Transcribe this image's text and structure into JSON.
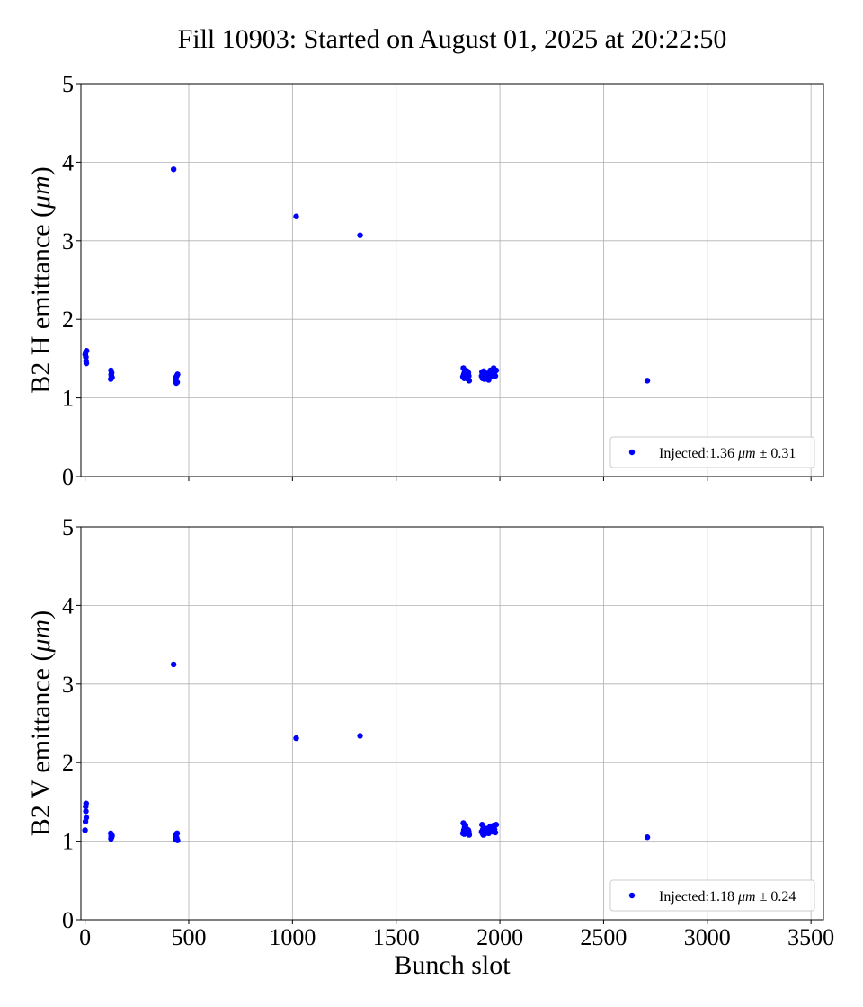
{
  "figure": {
    "title": "Fill 10903: Started on August 01, 2025 at 20:22:50"
  },
  "chart_data": [
    {
      "type": "scatter",
      "ylabel": "B2 H emittance (",
      "ylabel_unit": "μm",
      "ylabel_close": ")",
      "xlabel": "",
      "xlim": [
        -20,
        3560
      ],
      "ylim": [
        0,
        5
      ],
      "xticks": [
        0,
        500,
        1000,
        1500,
        2000,
        2500,
        3000,
        3500
      ],
      "xtick_labels_visible": false,
      "yticks": [
        0,
        1,
        2,
        3,
        4,
        5
      ],
      "grid": true,
      "legend_position": "lower-right",
      "color": "#0000ff",
      "series": [
        {
          "name": "Injected:1.36 μm ± 0.31",
          "legend_prefix": "Injected:1.36 ",
          "legend_unit": "μm",
          "legend_suffix": " ± 0.31",
          "points": [
            [
              1,
              1.55
            ],
            [
              3,
              1.58
            ],
            [
              4,
              1.52
            ],
            [
              5,
              1.47
            ],
            [
              6,
              1.44
            ],
            [
              7,
              1.6
            ],
            [
              124,
              1.24
            ],
            [
              125,
              1.35
            ],
            [
              126,
              1.3
            ],
            [
              127,
              1.28
            ],
            [
              128,
              1.32
            ],
            [
              130,
              1.26
            ],
            [
              427,
              3.91
            ],
            [
              436,
              1.22
            ],
            [
              438,
              1.26
            ],
            [
              440,
              1.19
            ],
            [
              442,
              1.28
            ],
            [
              444,
              1.2
            ],
            [
              446,
              1.3
            ],
            [
              1018,
              3.31
            ],
            [
              1326,
              3.07
            ],
            [
              1822,
              1.27
            ],
            [
              1824,
              1.38
            ],
            [
              1826,
              1.3
            ],
            [
              1828,
              1.25
            ],
            [
              1830,
              1.33
            ],
            [
              1832,
              1.28
            ],
            [
              1834,
              1.35
            ],
            [
              1836,
              1.26
            ],
            [
              1838,
              1.31
            ],
            [
              1840,
              1.27
            ],
            [
              1842,
              1.34
            ],
            [
              1844,
              1.29
            ],
            [
              1846,
              1.24
            ],
            [
              1848,
              1.32
            ],
            [
              1850,
              1.28
            ],
            [
              1852,
              1.22
            ],
            [
              1912,
              1.28
            ],
            [
              1914,
              1.33
            ],
            [
              1916,
              1.25
            ],
            [
              1918,
              1.3
            ],
            [
              1920,
              1.27
            ],
            [
              1922,
              1.34
            ],
            [
              1926,
              1.24
            ],
            [
              1930,
              1.29
            ],
            [
              1934,
              1.26
            ],
            [
              1938,
              1.31
            ],
            [
              1942,
              1.28
            ],
            [
              1946,
              1.23
            ],
            [
              1950,
              1.3
            ],
            [
              1954,
              1.35
            ],
            [
              1958,
              1.27
            ],
            [
              1962,
              1.32
            ],
            [
              1966,
              1.29
            ],
            [
              1970,
              1.38
            ],
            [
              1974,
              1.33
            ],
            [
              1978,
              1.28
            ],
            [
              1982,
              1.35
            ],
            [
              2711,
              1.22
            ]
          ]
        }
      ]
    },
    {
      "type": "scatter",
      "ylabel": "B2 V emittance (",
      "ylabel_unit": "μm",
      "ylabel_close": ")",
      "xlabel": "Bunch slot",
      "xlim": [
        -20,
        3560
      ],
      "ylim": [
        0,
        5
      ],
      "xticks": [
        0,
        500,
        1000,
        1500,
        2000,
        2500,
        3000,
        3500
      ],
      "xtick_labels_visible": true,
      "yticks": [
        0,
        1,
        2,
        3,
        4,
        5
      ],
      "grid": true,
      "legend_position": "lower-right",
      "color": "#0000ff",
      "series": [
        {
          "name": "Injected:1.18 μm ± 0.24",
          "legend_prefix": "Injected:1.18 ",
          "legend_unit": "μm",
          "legend_suffix": " ± 0.24",
          "points": [
            [
              0,
              1.14
            ],
            [
              2,
              1.25
            ],
            [
              3,
              1.44
            ],
            [
              4,
              1.38
            ],
            [
              5,
              1.48
            ],
            [
              6,
              1.3
            ],
            [
              124,
              1.1
            ],
            [
              125,
              1.03
            ],
            [
              126,
              1.06
            ],
            [
              127,
              1.08
            ],
            [
              128,
              1.05
            ],
            [
              130,
              1.07
            ],
            [
              427,
              3.25
            ],
            [
              436,
              1.06
            ],
            [
              438,
              1.02
            ],
            [
              440,
              1.09
            ],
            [
              442,
              1.04
            ],
            [
              444,
              1.1
            ],
            [
              446,
              1.01
            ],
            [
              1018,
              2.31
            ],
            [
              1326,
              2.34
            ],
            [
              1822,
              1.1
            ],
            [
              1824,
              1.23
            ],
            [
              1826,
              1.14
            ],
            [
              1828,
              1.09
            ],
            [
              1830,
              1.18
            ],
            [
              1832,
              1.12
            ],
            [
              1834,
              1.2
            ],
            [
              1836,
              1.11
            ],
            [
              1838,
              1.16
            ],
            [
              1840,
              1.1
            ],
            [
              1842,
              1.15
            ],
            [
              1844,
              1.13
            ],
            [
              1846,
              1.09
            ],
            [
              1848,
              1.14
            ],
            [
              1850,
              1.12
            ],
            [
              1852,
              1.08
            ],
            [
              1912,
              1.12
            ],
            [
              1914,
              1.21
            ],
            [
              1916,
              1.1
            ],
            [
              1918,
              1.15
            ],
            [
              1920,
              1.08
            ],
            [
              1922,
              1.17
            ],
            [
              1926,
              1.09
            ],
            [
              1930,
              1.13
            ],
            [
              1934,
              1.11
            ],
            [
              1938,
              1.16
            ],
            [
              1942,
              1.12
            ],
            [
              1946,
              1.1
            ],
            [
              1950,
              1.14
            ],
            [
              1954,
              1.19
            ],
            [
              1958,
              1.13
            ],
            [
              1962,
              1.17
            ],
            [
              1966,
              1.12
            ],
            [
              1970,
              1.2
            ],
            [
              1974,
              1.15
            ],
            [
              1978,
              1.11
            ],
            [
              1982,
              1.21
            ],
            [
              2711,
              1.05
            ]
          ]
        }
      ]
    }
  ]
}
